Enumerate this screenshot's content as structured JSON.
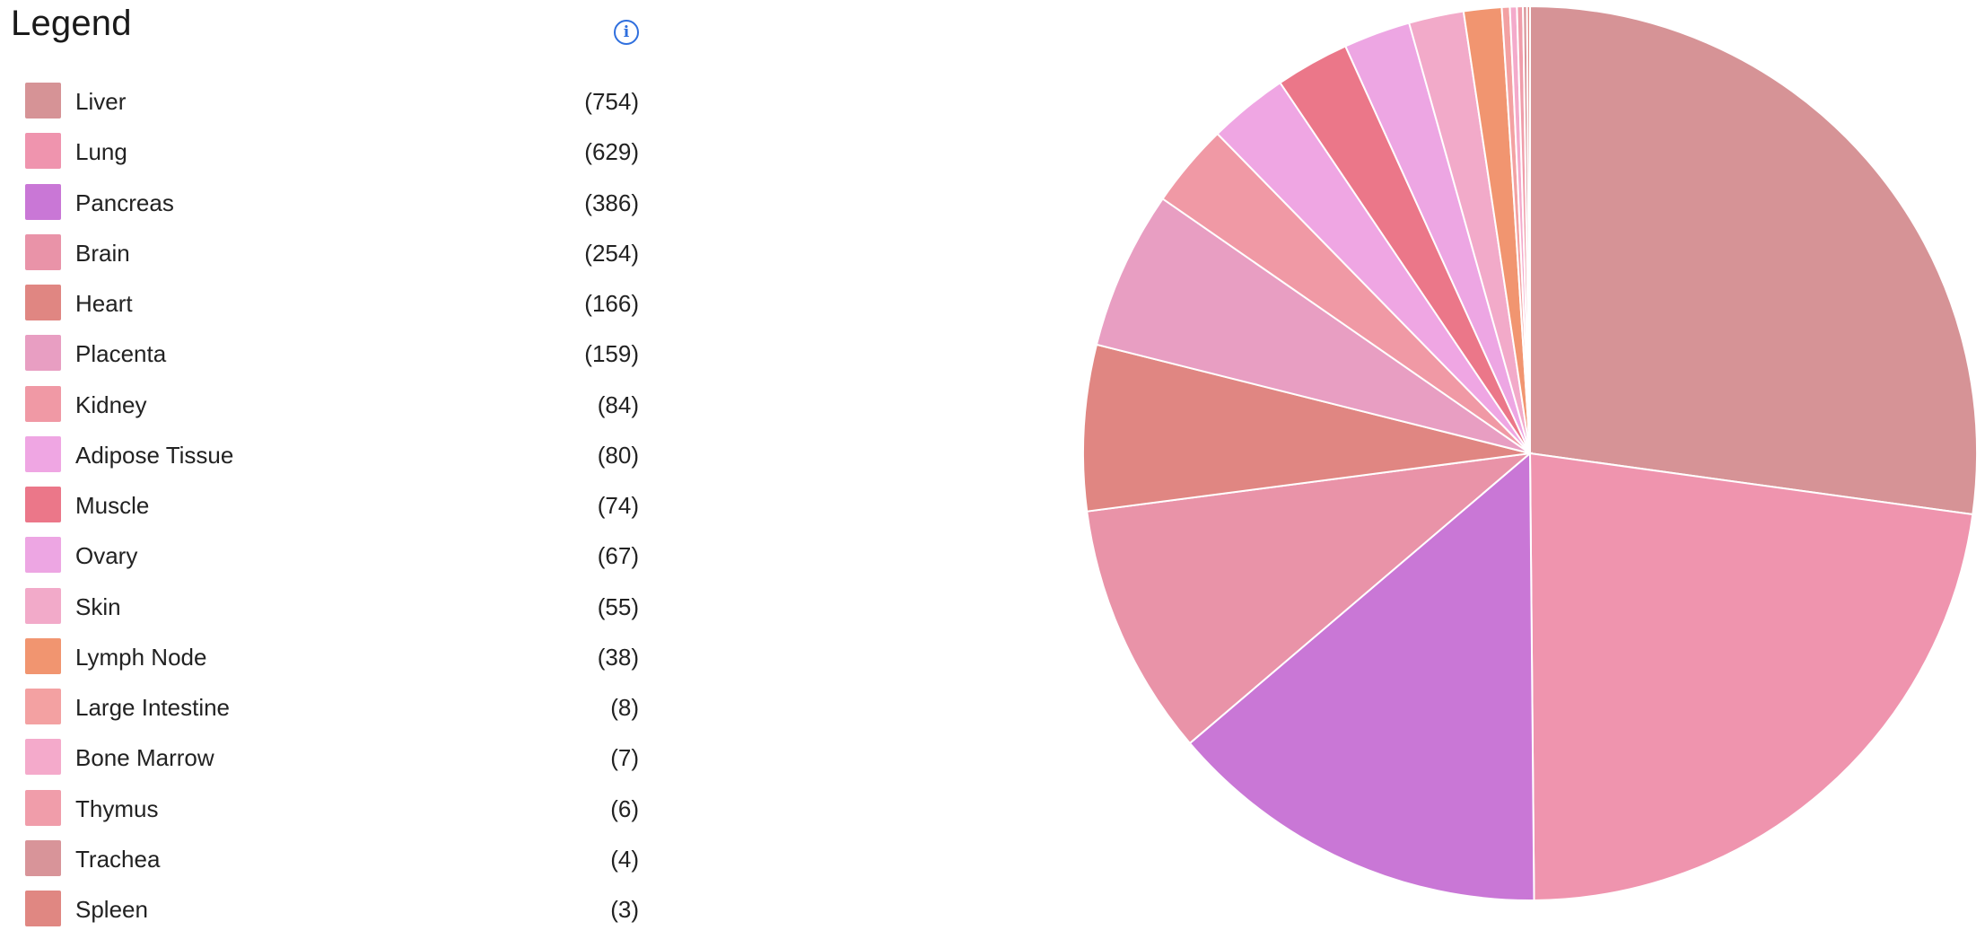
{
  "legend": {
    "title": "Legend",
    "info_icon": "info-circle-icon",
    "info_glyph": "i"
  },
  "chart_data": {
    "type": "pie",
    "title": "",
    "legend_position": "left",
    "categories": [
      "Liver",
      "Lung",
      "Pancreas",
      "Brain",
      "Heart",
      "Placenta",
      "Kidney",
      "Adipose Tissue",
      "Muscle",
      "Ovary",
      "Skin",
      "Lymph Node",
      "Large Intestine",
      "Bone Marrow",
      "Thymus",
      "Trachea",
      "Spleen"
    ],
    "values": [
      754,
      629,
      386,
      254,
      166,
      159,
      84,
      80,
      74,
      67,
      55,
      38,
      8,
      7,
      6,
      4,
      3
    ],
    "value_labels": [
      "(754)",
      "(629)",
      "(386)",
      "(254)",
      "(166)",
      "(159)",
      "(84)",
      "(80)",
      "(74)",
      "(67)",
      "(55)",
      "(38)",
      "(8)",
      "(7)",
      "(6)",
      "(4)",
      "(3)"
    ],
    "colors": [
      "#D69396",
      "#EF94AE",
      "#C977D6",
      "#E993A8",
      "#E08682",
      "#E89EC2",
      "#F099A5",
      "#EFA6E3",
      "#EB7789",
      "#EDA6E3",
      "#F2AAC9",
      "#F19570",
      "#F3A1A2",
      "#F4AACB",
      "#F09DAA",
      "#D89499",
      "#E08782"
    ]
  }
}
